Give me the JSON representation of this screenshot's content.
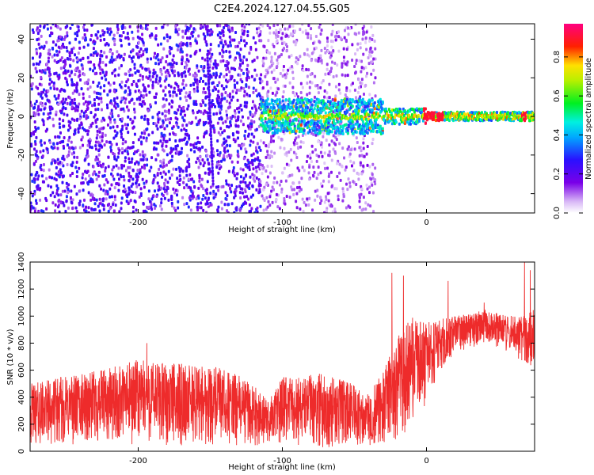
{
  "title": "C2E4.2024.127.04.55.G05",
  "chart_data": [
    {
      "type": "heatmap",
      "xlabel": "Height of straight line (km)",
      "ylabel": "Frequency (Hz)",
      "xlim": [
        -275,
        75
      ],
      "ylim": [
        -50,
        48
      ],
      "xticks": [
        -200,
        -100,
        0
      ],
      "yticks": [
        -40,
        -20,
        0,
        20,
        40
      ],
      "grid": false,
      "colorbar": {
        "label": "Normalized spectral amplitude",
        "range": [
          0,
          0.97
        ],
        "ticks": [
          0.0,
          0.2,
          0.4,
          0.6,
          0.8
        ],
        "tick_labels": [
          "0.0",
          "0.2",
          "0.4",
          "0.6",
          "0.8"
        ],
        "colormap": "rainbow (white-purple-blue-cyan-green-yellow-red-pink)"
      },
      "features": [
        {
          "desc": "dense noise region",
          "x_range": [
            -275,
            -115
          ],
          "freq_range": [
            -50,
            48
          ],
          "amplitude": 0.25
        },
        {
          "desc": "sparse noise region",
          "x_range": [
            -115,
            -35
          ],
          "freq_range": [
            -50,
            48
          ],
          "amplitude": 0.1
        },
        {
          "desc": "diagonal streak",
          "x_start": -148,
          "x_end": -152,
          "freq_start": -35,
          "freq_end": 32,
          "amplitude": 0.2
        },
        {
          "desc": "carrier band near 0 Hz",
          "x_range": [
            -115,
            75
          ],
          "freq_center": 0,
          "amplitude_max": 0.95
        }
      ]
    },
    {
      "type": "line",
      "xlabel": "Height of straight line (km)",
      "ylabel": "SNR (10 * v/v)",
      "xlim": [
        -275,
        75
      ],
      "ylim": [
        0,
        1400
      ],
      "xticks": [
        -200,
        -100,
        0
      ],
      "yticks": [
        0,
        200,
        400,
        600,
        800,
        1000,
        1200,
        1400
      ],
      "grid": false,
      "color": "#ee2b2b",
      "series": [
        {
          "x": [
            -275,
            -250,
            -225,
            -200,
            -175,
            -150,
            -125,
            -110,
            -100,
            -75,
            -50,
            -40,
            -30,
            -20,
            -10,
            0,
            10,
            20,
            30,
            40,
            50,
            60,
            70,
            75
          ],
          "y_low": [
            40,
            40,
            40,
            40,
            40,
            40,
            40,
            40,
            40,
            30,
            20,
            20,
            50,
            80,
            180,
            350,
            600,
            720,
            760,
            800,
            760,
            720,
            620,
            640
          ],
          "y_high": [
            500,
            560,
            600,
            680,
            650,
            640,
            540,
            380,
            550,
            580,
            500,
            420,
            600,
            850,
            1000,
            950,
            980,
            1000,
            1020,
            1050,
            1020,
            1000,
            1000,
            1100
          ],
          "spikes": [
            [
              -194,
              800
            ],
            [
              -24,
              1320
            ],
            [
              -16,
              1300
            ],
            [
              15,
              1260
            ],
            [
              40,
              1100
            ],
            [
              68,
              1400
            ],
            [
              72,
              1340
            ]
          ]
        }
      ]
    }
  ]
}
